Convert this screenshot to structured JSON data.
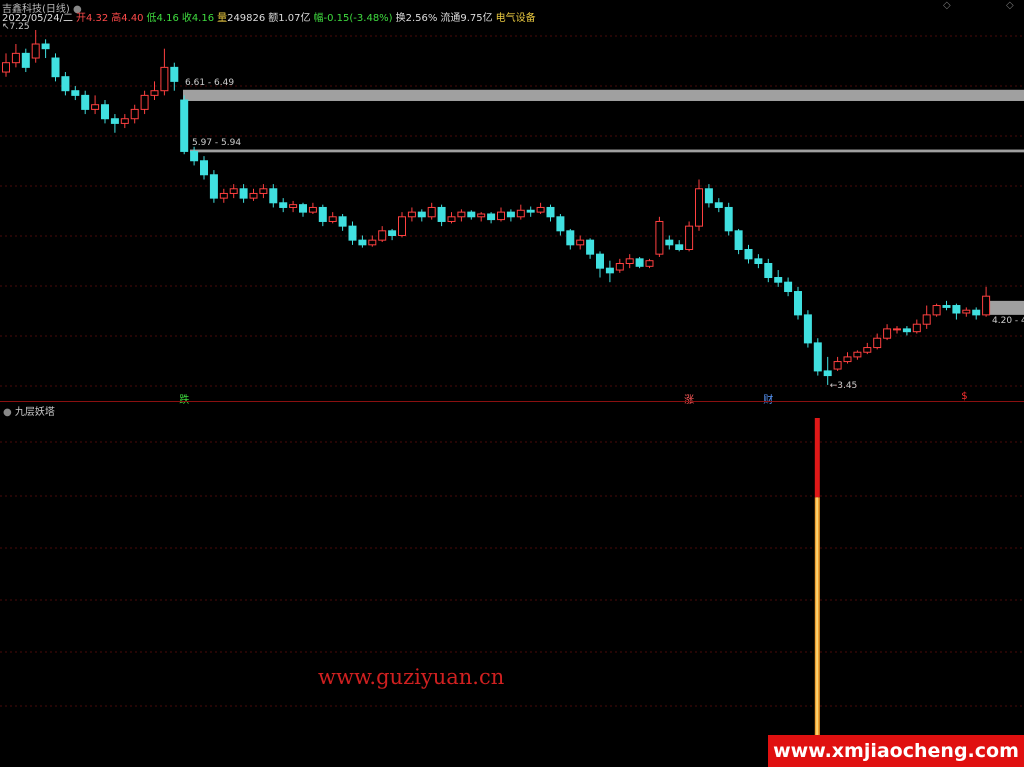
{
  "header": {
    "title": "吉鑫科技(日线)",
    "date": "2022/05/24/二",
    "open_label": "开",
    "open": "4.32",
    "high_label": "高",
    "high": "4.40",
    "low_label": "低",
    "low": "4.16",
    "close_label": "收",
    "close": "4.16",
    "volume_label": "量",
    "volume": "249826",
    "amount_label": "额",
    "amount": "1.07亿",
    "change_label": "幅",
    "change": "-0.15(-3.48%)",
    "turnover_label": "换",
    "turnover": "2.56%",
    "float_label": "流通",
    "float": "9.75亿",
    "sector": "电气设备"
  },
  "top_icons": [
    "diamond-icon",
    "diamond-icon"
  ],
  "chart_data": {
    "type": "candlestick",
    "ylim": [
      3.2,
      7.55
    ],
    "columns": [
      "open",
      "high",
      "low",
      "close"
    ],
    "candles": [
      [
        6.8,
        7.0,
        6.75,
        6.9
      ],
      [
        6.9,
        7.1,
        6.85,
        7.0
      ],
      [
        7.0,
        7.05,
        6.8,
        6.85
      ],
      [
        6.95,
        7.25,
        6.9,
        7.1
      ],
      [
        7.1,
        7.15,
        6.95,
        7.05
      ],
      [
        6.95,
        7.0,
        6.7,
        6.75
      ],
      [
        6.75,
        6.8,
        6.55,
        6.6
      ],
      [
        6.6,
        6.65,
        6.5,
        6.55
      ],
      [
        6.55,
        6.6,
        6.35,
        6.4
      ],
      [
        6.4,
        6.55,
        6.35,
        6.45
      ],
      [
        6.45,
        6.5,
        6.25,
        6.3
      ],
      [
        6.3,
        6.35,
        6.15,
        6.25
      ],
      [
        6.25,
        6.35,
        6.2,
        6.3
      ],
      [
        6.3,
        6.45,
        6.25,
        6.4
      ],
      [
        6.4,
        6.6,
        6.35,
        6.55
      ],
      [
        6.55,
        6.7,
        6.5,
        6.6
      ],
      [
        6.6,
        7.05,
        6.55,
        6.85
      ],
      [
        6.85,
        6.9,
        6.6,
        6.7
      ],
      [
        6.5,
        6.55,
        5.92,
        5.95
      ],
      [
        5.95,
        6.0,
        5.8,
        5.85
      ],
      [
        5.85,
        5.9,
        5.65,
        5.7
      ],
      [
        5.7,
        5.75,
        5.4,
        5.45
      ],
      [
        5.45,
        5.55,
        5.4,
        5.5
      ],
      [
        5.5,
        5.6,
        5.45,
        5.55
      ],
      [
        5.55,
        5.6,
        5.4,
        5.45
      ],
      [
        5.45,
        5.55,
        5.42,
        5.5
      ],
      [
        5.5,
        5.6,
        5.45,
        5.55
      ],
      [
        5.55,
        5.6,
        5.35,
        5.4
      ],
      [
        5.4,
        5.45,
        5.3,
        5.35
      ],
      [
        5.35,
        5.42,
        5.3,
        5.38
      ],
      [
        5.38,
        5.4,
        5.25,
        5.3
      ],
      [
        5.3,
        5.4,
        5.28,
        5.35
      ],
      [
        5.35,
        5.38,
        5.15,
        5.2
      ],
      [
        5.2,
        5.3,
        5.18,
        5.25
      ],
      [
        5.25,
        5.28,
        5.1,
        5.15
      ],
      [
        5.15,
        5.2,
        4.95,
        5.0
      ],
      [
        5.0,
        5.05,
        4.92,
        4.95
      ],
      [
        4.95,
        5.05,
        4.93,
        5.0
      ],
      [
        5.0,
        5.15,
        4.98,
        5.1
      ],
      [
        5.1,
        5.12,
        5.0,
        5.05
      ],
      [
        5.05,
        5.3,
        5.03,
        5.25
      ],
      [
        5.25,
        5.35,
        5.2,
        5.3
      ],
      [
        5.3,
        5.33,
        5.2,
        5.25
      ],
      [
        5.25,
        5.4,
        5.22,
        5.35
      ],
      [
        5.35,
        5.38,
        5.15,
        5.2
      ],
      [
        5.2,
        5.3,
        5.18,
        5.25
      ],
      [
        5.25,
        5.33,
        5.2,
        5.3
      ],
      [
        5.3,
        5.32,
        5.22,
        5.25
      ],
      [
        5.25,
        5.3,
        5.2,
        5.28
      ],
      [
        5.28,
        5.3,
        5.18,
        5.22
      ],
      [
        5.22,
        5.35,
        5.2,
        5.3
      ],
      [
        5.3,
        5.33,
        5.2,
        5.25
      ],
      [
        5.25,
        5.38,
        5.22,
        5.32
      ],
      [
        5.32,
        5.36,
        5.25,
        5.3
      ],
      [
        5.3,
        5.4,
        5.28,
        5.35
      ],
      [
        5.35,
        5.38,
        5.2,
        5.25
      ],
      [
        5.25,
        5.28,
        5.05,
        5.1
      ],
      [
        5.1,
        5.12,
        4.9,
        4.95
      ],
      [
        4.95,
        5.05,
        4.9,
        5.0
      ],
      [
        5.0,
        5.02,
        4.8,
        4.85
      ],
      [
        4.85,
        4.88,
        4.6,
        4.7
      ],
      [
        4.7,
        4.78,
        4.55,
        4.65
      ],
      [
        4.68,
        4.8,
        4.65,
        4.75
      ],
      [
        4.75,
        4.85,
        4.7,
        4.8
      ],
      [
        4.8,
        4.82,
        4.7,
        4.72
      ],
      [
        4.72,
        4.8,
        4.7,
        4.78
      ],
      [
        4.85,
        5.25,
        4.82,
        5.2
      ],
      [
        5.0,
        5.05,
        4.9,
        4.95
      ],
      [
        4.95,
        5.0,
        4.88,
        4.9
      ],
      [
        4.9,
        5.2,
        4.88,
        5.15
      ],
      [
        5.15,
        5.65,
        5.1,
        5.55
      ],
      [
        5.55,
        5.6,
        5.35,
        5.4
      ],
      [
        5.4,
        5.45,
        5.3,
        5.35
      ],
      [
        5.35,
        5.4,
        5.05,
        5.1
      ],
      [
        5.1,
        5.12,
        4.85,
        4.9
      ],
      [
        4.9,
        4.95,
        4.75,
        4.8
      ],
      [
        4.8,
        4.85,
        4.7,
        4.75
      ],
      [
        4.75,
        4.8,
        4.55,
        4.6
      ],
      [
        4.6,
        4.68,
        4.5,
        4.55
      ],
      [
        4.55,
        4.6,
        4.4,
        4.45
      ],
      [
        4.45,
        4.5,
        4.15,
        4.2
      ],
      [
        4.2,
        4.25,
        3.85,
        3.9
      ],
      [
        3.9,
        3.95,
        3.55,
        3.6
      ],
      [
        3.6,
        3.75,
        3.45,
        3.55
      ],
      [
        3.62,
        3.75,
        3.6,
        3.7
      ],
      [
        3.7,
        3.8,
        3.68,
        3.75
      ],
      [
        3.75,
        3.82,
        3.72,
        3.8
      ],
      [
        3.8,
        3.9,
        3.78,
        3.85
      ],
      [
        3.85,
        4.0,
        3.83,
        3.95
      ],
      [
        3.95,
        4.1,
        3.93,
        4.05
      ],
      [
        4.05,
        4.08,
        4.0,
        4.05
      ],
      [
        4.05,
        4.08,
        3.98,
        4.02
      ],
      [
        4.02,
        4.15,
        4.0,
        4.1
      ],
      [
        4.1,
        4.3,
        4.05,
        4.2
      ],
      [
        4.2,
        4.32,
        4.18,
        4.3
      ],
      [
        4.3,
        4.35,
        4.25,
        4.28
      ],
      [
        4.3,
        4.32,
        4.15,
        4.22
      ],
      [
        4.22,
        4.28,
        4.18,
        4.25
      ],
      [
        4.25,
        4.28,
        4.15,
        4.2
      ],
      [
        4.2,
        4.5,
        4.18,
        4.4
      ]
    ],
    "annotations": {
      "max_label": "7.25",
      "min_label": "3.45"
    },
    "zones": [
      {
        "label": "6.61 - 6.49",
        "top": 6.61,
        "bottom": 6.49
      },
      {
        "label": "5.97 - 5.94",
        "top": 5.97,
        "bottom": 5.94
      },
      {
        "label": "4.20 - 4.",
        "top": 4.35,
        "bottom": 4.2
      }
    ],
    "signals": [
      {
        "text": "跌",
        "index": 18,
        "color": "#3fdc3f"
      },
      {
        "text": "涨",
        "index": 69,
        "color": "#ff5a5a"
      },
      {
        "text": "财",
        "index": 77,
        "color": "#5a9aff"
      },
      {
        "text": "$",
        "index": 97,
        "color": "#ff3030"
      }
    ],
    "colors": {
      "up": "#ff4040",
      "down": "#40e0e0",
      "zone": "#a0a0a0",
      "grid": "#4a0a0a"
    }
  },
  "indicator": {
    "name": "九层妖塔",
    "bar_index": 82,
    "segments": [
      {
        "from": 0,
        "to": 0.75,
        "color": "#f0a030"
      },
      {
        "from": 0.75,
        "to": 1,
        "color": "#e01818"
      }
    ]
  },
  "watermarks": {
    "site1": "www.guziyuan.cn",
    "site2": "www.xmjiaocheng.com"
  }
}
